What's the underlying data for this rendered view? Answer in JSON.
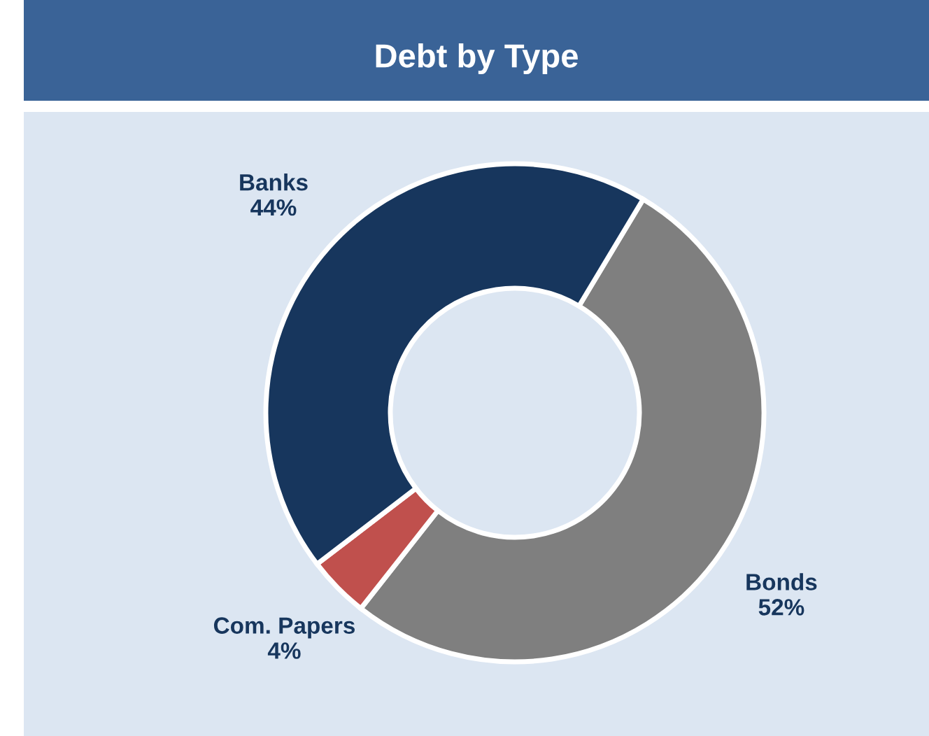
{
  "chart_data": {
    "type": "donut",
    "title": "Debt by Type",
    "categories": [
      "Bonds",
      "Com. Papers",
      "Banks"
    ],
    "values": [
      52,
      4,
      44
    ],
    "colors": [
      "#7f7f7f",
      "#c0504d",
      "#17365d"
    ],
    "value_labels": [
      "52%",
      "4%",
      "44%"
    ],
    "legend": false
  }
}
